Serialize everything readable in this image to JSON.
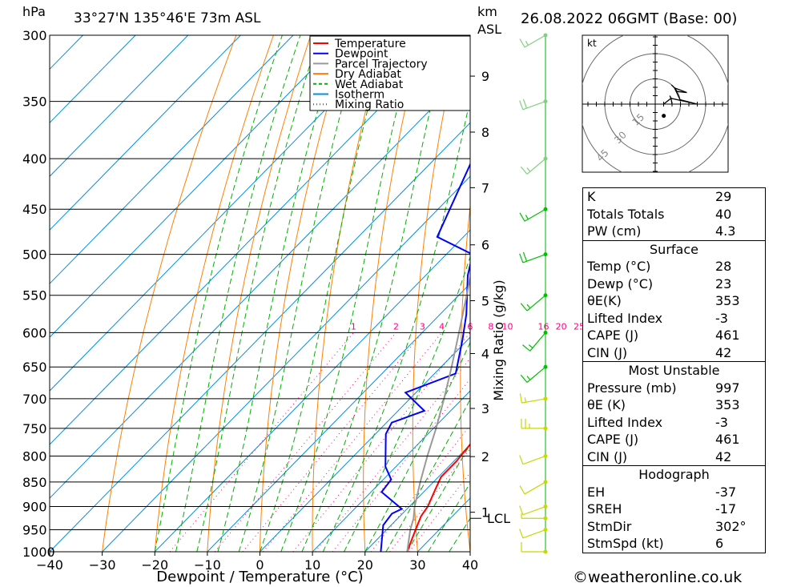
{
  "header": {
    "pressure_unit": "hPa",
    "location": "33°27'N  135°46'E  73m  ASL",
    "km_unit": "km",
    "km_unit2": "ASL",
    "datetime": "26.08.2022  06GMT  (Base: 00)"
  },
  "footer": {
    "copyright": "©weatheronline.co.uk"
  },
  "chart_data": {
    "type": "line",
    "subtype": "skew-T log-P diagram",
    "xlabel": "Dewpoint / Temperature (°C)",
    "ylabel": "hPa",
    "ylabel_right": "Mixing Ratio (g/kg)",
    "xlim": [
      -40,
      40
    ],
    "ylim": [
      1000,
      300
    ],
    "y_scale": "log",
    "x_ticks": [
      -40,
      -30,
      -20,
      -10,
      0,
      10,
      20,
      30,
      40
    ],
    "y_ticks": [
      300,
      350,
      400,
      450,
      500,
      550,
      600,
      650,
      700,
      750,
      800,
      850,
      900,
      950,
      1000
    ],
    "km_ticks": [
      {
        "label": "1",
        "p": 912
      },
      {
        "label": "2",
        "p": 801
      },
      {
        "label": "3",
        "p": 716
      },
      {
        "label": "4",
        "p": 630
      },
      {
        "label": "5",
        "p": 557
      },
      {
        "label": "6",
        "p": 489
      },
      {
        "label": "7",
        "p": 428
      },
      {
        "label": "8",
        "p": 376
      },
      {
        "label": "9",
        "p": 330
      }
    ],
    "lcl": {
      "label": "LCL",
      "p": 925
    },
    "mixing_ratio_labels": [
      "1",
      "2",
      "3",
      "4",
      "6",
      "8",
      "10",
      "16",
      "20",
      "25"
    ],
    "mixing_ratio_values": [
      1,
      2,
      3,
      4,
      6,
      8,
      10,
      16,
      20,
      25
    ],
    "legend": {
      "placement": "top-center",
      "entries": [
        {
          "name": "Temperature",
          "color": "#ff0000",
          "style": "solid"
        },
        {
          "name": "Dewpoint",
          "color": "#0000ff",
          "style": "solid"
        },
        {
          "name": "Parcel Trajectory",
          "color": "#999999",
          "style": "solid"
        },
        {
          "name": "Dry Adiabat",
          "color": "#ff8000",
          "style": "solid"
        },
        {
          "name": "Wet Adiabat",
          "color": "#00b000",
          "style": "dashed"
        },
        {
          "name": "Isotherm",
          "color": "#0090e0",
          "style": "solid"
        },
        {
          "name": "Mixing Ratio",
          "color": "#ff0080",
          "style": "dotted"
        }
      ]
    },
    "series": [
      {
        "name": "Temperature",
        "color": "#ff0000",
        "points": [
          [
            28,
            1000
          ],
          [
            25.5,
            950
          ],
          [
            24,
            920
          ],
          [
            23.5,
            900
          ],
          [
            22,
            870
          ],
          [
            20.5,
            840
          ],
          [
            20.5,
            810
          ],
          [
            20,
            780
          ],
          [
            19.5,
            745
          ],
          [
            19,
            720
          ],
          [
            17,
            700
          ],
          [
            16,
            670
          ],
          [
            14,
            640
          ],
          [
            12.5,
            610
          ],
          [
            10.8,
            585
          ],
          [
            9,
            560
          ],
          [
            6.5,
            530
          ],
          [
            4.5,
            510
          ],
          [
            5,
            495
          ],
          [
            3,
            470
          ],
          [
            0.5,
            450
          ],
          [
            -3,
            425
          ],
          [
            -6.5,
            400
          ],
          [
            -10,
            380
          ],
          [
            -12.5,
            365
          ]
        ]
      },
      {
        "name": "Dewpoint",
        "color": "#0000ff",
        "points": [
          [
            23,
            1000
          ],
          [
            18.5,
            940
          ],
          [
            18,
            915
          ],
          [
            19,
            905
          ],
          [
            12,
            870
          ],
          [
            11.5,
            845
          ],
          [
            8,
            820
          ],
          [
            2,
            760
          ],
          [
            1,
            740
          ],
          [
            5,
            720
          ],
          [
            -2,
            690
          ],
          [
            4,
            660
          ],
          [
            -1,
            610
          ],
          [
            -5,
            575
          ],
          [
            -12,
            525
          ],
          [
            -15,
            500
          ],
          [
            -25,
            480
          ],
          [
            -35,
            380
          ],
          [
            -28,
            370
          ],
          [
            -30,
            355
          ],
          [
            -26,
            350
          ],
          [
            -34,
            325
          ],
          [
            -33,
            300
          ]
        ]
      },
      {
        "name": "Parcel Trajectory",
        "color": "#999999",
        "points": [
          [
            28,
            1000
          ],
          [
            24.5,
            950
          ],
          [
            23,
            925
          ],
          [
            21,
            900
          ],
          [
            17.5,
            850
          ],
          [
            14,
            800
          ],
          [
            10.5,
            750
          ],
          [
            6.5,
            700
          ],
          [
            2,
            650
          ],
          [
            -3,
            600
          ],
          [
            -8.5,
            550
          ],
          [
            -14.5,
            500
          ],
          [
            -21.5,
            450
          ],
          [
            -29.5,
            400
          ],
          [
            -36.5,
            365
          ]
        ]
      }
    ],
    "wind_profile": [
      {
        "p": 1000,
        "dir": 270,
        "kt": 10
      },
      {
        "p": 950,
        "dir": 250,
        "kt": 10
      },
      {
        "p": 925,
        "dir": 270,
        "kt": 5
      },
      {
        "p": 900,
        "dir": 250,
        "kt": 10
      },
      {
        "p": 850,
        "dir": 240,
        "kt": 10
      },
      {
        "p": 800,
        "dir": 250,
        "kt": 10
      },
      {
        "p": 750,
        "dir": 270,
        "kt": 25
      },
      {
        "p": 700,
        "dir": 260,
        "kt": 15
      },
      {
        "p": 650,
        "dir": 230,
        "kt": 15
      },
      {
        "p": 600,
        "dir": 220,
        "kt": 15
      },
      {
        "p": 550,
        "dir": 230,
        "kt": 15
      },
      {
        "p": 500,
        "dir": 250,
        "kt": 20
      },
      {
        "p": 450,
        "dir": 240,
        "kt": 15
      },
      {
        "p": 400,
        "dir": 230,
        "kt": 15
      },
      {
        "p": 350,
        "dir": 250,
        "kt": 20
      },
      {
        "p": 300,
        "dir": 240,
        "kt": 15
      }
    ],
    "hodograph": {
      "unit_label": "kt",
      "ring_labels": [
        "15",
        "30",
        "45"
      ],
      "ring_values": [
        15,
        30,
        45
      ]
    }
  },
  "indices": {
    "top": [
      {
        "label": "K",
        "value": "29"
      },
      {
        "label": "Totals Totals",
        "value": "40"
      },
      {
        "label": "PW (cm)",
        "value": "4.3"
      }
    ],
    "surface": {
      "title": "Surface",
      "rows": [
        {
          "label": "Temp (°C)",
          "value": "28"
        },
        {
          "label": "Dewp (°C)",
          "value": "23"
        },
        {
          "label": "θE(K)",
          "value": "353"
        },
        {
          "label": "Lifted Index",
          "value": "-3"
        },
        {
          "label": "CAPE (J)",
          "value": "461"
        },
        {
          "label": "CIN (J)",
          "value": "42"
        }
      ]
    },
    "most_unstable": {
      "title": "Most Unstable",
      "rows": [
        {
          "label": "Pressure (mb)",
          "value": "997"
        },
        {
          "label": "θE (K)",
          "value": "353"
        },
        {
          "label": "Lifted Index",
          "value": "-3"
        },
        {
          "label": "CAPE (J)",
          "value": "461"
        },
        {
          "label": "CIN (J)",
          "value": "42"
        }
      ]
    },
    "hodograph_params": {
      "title": "Hodograph",
      "rows": [
        {
          "label": "EH",
          "value": "-37"
        },
        {
          "label": "SREH",
          "value": "-17"
        },
        {
          "label": "StmDir",
          "value": "302°"
        },
        {
          "label": "StmSpd (kt)",
          "value": "6"
        }
      ]
    }
  }
}
